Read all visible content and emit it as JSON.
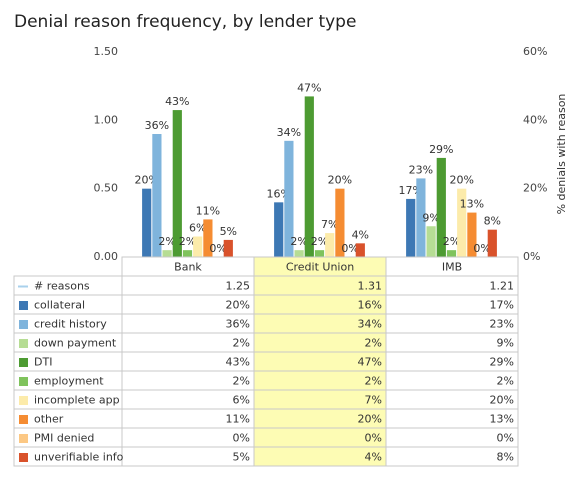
{
  "chart_data": {
    "type": "bar",
    "title": "Denial reason frequency, by lender type",
    "categories": [
      "Bank",
      "Credit Union",
      "IMB"
    ],
    "highlighted_category_index": 1,
    "ylim": [
      0,
      1.5
    ],
    "yticks": [
      {
        "value": 0,
        "label": "0.00"
      },
      {
        "value": 0.5,
        "label": "0.50"
      },
      {
        "value": 1,
        "label": "1.00"
      },
      {
        "value": 1.5,
        "label": "1.50"
      }
    ],
    "y2lim": [
      0,
      60
    ],
    "y2ticks": [
      {
        "value": 0,
        "label": "0%"
      },
      {
        "value": 20,
        "label": "20%"
      },
      {
        "value": 40,
        "label": "40%"
      },
      {
        "value": 60,
        "label": "60%"
      }
    ],
    "y2label": "% denials with reason",
    "series": [
      {
        "name": "# reasons",
        "color": "#a9d1ec",
        "type": "line",
        "values": [
          1.25,
          1.31,
          1.21
        ]
      },
      {
        "name": "collateral",
        "color": "#3d78b4",
        "axis": "y2",
        "values": [
          20,
          16,
          17
        ],
        "value_labels": [
          "20%",
          "16%",
          "17%"
        ]
      },
      {
        "name": "credit history",
        "color": "#7fb4dc",
        "axis": "y2",
        "values": [
          36,
          34,
          23
        ],
        "value_labels": [
          "36%",
          "34%",
          "23%"
        ]
      },
      {
        "name": "down payment",
        "color": "#b6dd94",
        "axis": "y2",
        "values": [
          2,
          2,
          9
        ],
        "value_labels": [
          "2%",
          "2%",
          "9%"
        ]
      },
      {
        "name": "DTI",
        "color": "#4d9b32",
        "axis": "y2",
        "values": [
          43,
          47,
          29
        ],
        "value_labels": [
          "43%",
          "47%",
          "29%"
        ]
      },
      {
        "name": "employment",
        "color": "#7fc35c",
        "axis": "y2",
        "values": [
          2,
          2,
          2
        ],
        "value_labels": [
          "2%",
          "2%",
          "2%"
        ]
      },
      {
        "name": "incomplete app",
        "color": "#fcebaa",
        "axis": "y2",
        "values": [
          6,
          7,
          20
        ],
        "value_labels": [
          "6%",
          "7%",
          "20%"
        ]
      },
      {
        "name": "other",
        "color": "#f58c32",
        "axis": "y2",
        "values": [
          11,
          20,
          13
        ],
        "value_labels": [
          "11%",
          "20%",
          "13%"
        ]
      },
      {
        "name": "PMI denied",
        "color": "#fcc884",
        "axis": "y2",
        "values": [
          0,
          0,
          0
        ],
        "value_labels": [
          "0%",
          "0%",
          "0%"
        ]
      },
      {
        "name": "unverifiable info",
        "color": "#d9522b",
        "axis": "y2",
        "values": [
          5,
          4,
          8
        ],
        "value_labels": [
          "5%",
          "4%",
          "8%"
        ]
      }
    ]
  }
}
